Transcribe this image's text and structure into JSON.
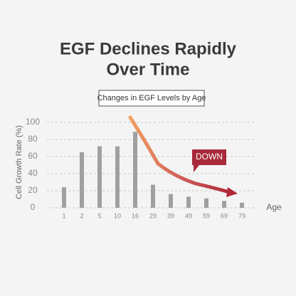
{
  "chart_data": {
    "type": "bar",
    "title": "EGF Declines Rapidly",
    "title_line2": "Over Time",
    "subtitle": "Changes in EGF Levels by Age",
    "y_label": "Cell Growth Rate (%)",
    "x_label": "Age",
    "annotation": "DOWN",
    "categories": [
      "1",
      "2",
      "5",
      "10",
      "16",
      "29",
      "39",
      "49",
      "59",
      "69",
      "79"
    ],
    "values": [
      24,
      65,
      72,
      72,
      89,
      27,
      16,
      13,
      11,
      8,
      6
    ],
    "color": "#a0a0a0",
    "ylim": [
      0,
      100
    ],
    "yticks": [
      0,
      20,
      40,
      60,
      80,
      100
    ],
    "grid": true
  }
}
